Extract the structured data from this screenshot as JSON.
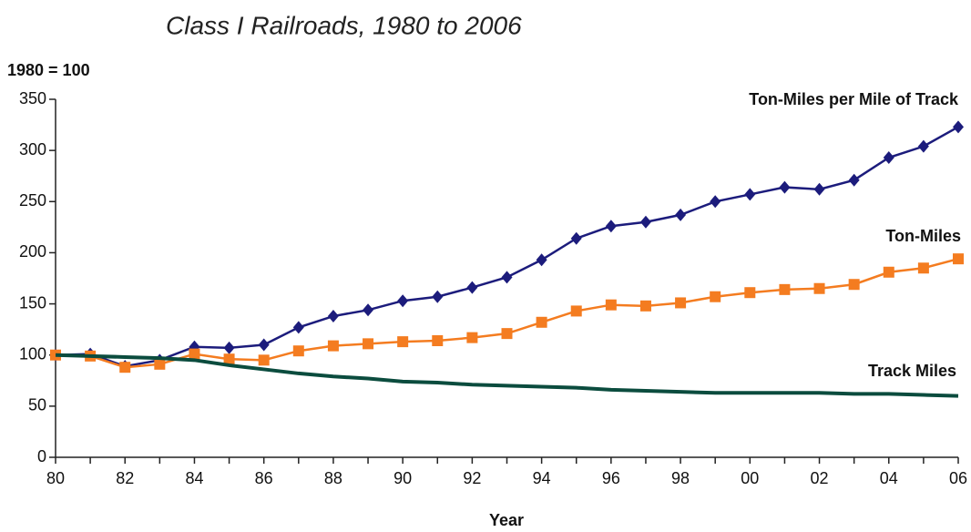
{
  "chart_data": {
    "type": "line",
    "title": "Class I Railroads, 1980 to 2006",
    "y_label": "1980 = 100",
    "x_label": "Year",
    "categories": [
      "80",
      null,
      "82",
      null,
      "84",
      null,
      "86",
      null,
      "88",
      null,
      "90",
      null,
      "92",
      null,
      "94",
      null,
      "96",
      null,
      "98",
      null,
      "00",
      null,
      "02",
      null,
      "04",
      null,
      "06"
    ],
    "ylim": [
      0,
      350
    ],
    "yticks": [
      0,
      50,
      100,
      150,
      200,
      250,
      300,
      350
    ],
    "grid": false,
    "series": [
      {
        "name": "Ton-Miles per Mile of Track",
        "color": "#1c1c7c",
        "marker": "diamond",
        "values": [
          100,
          101,
          89,
          95,
          108,
          107,
          110,
          127,
          138,
          144,
          153,
          157,
          166,
          176,
          193,
          214,
          226,
          230,
          237,
          250,
          257,
          264,
          262,
          271,
          293,
          304,
          323
        ]
      },
      {
        "name": "Ton-Miles",
        "color": "#f47c20",
        "marker": "square",
        "values": [
          100,
          99,
          88,
          91,
          101,
          96,
          95,
          104,
          109,
          111,
          113,
          114,
          117,
          121,
          132,
          143,
          149,
          148,
          151,
          157,
          161,
          164,
          165,
          169,
          181,
          185,
          194
        ]
      },
      {
        "name": "Track Miles",
        "color": "#0b4c3e",
        "marker": "none",
        "values": [
          100,
          99,
          98,
          97,
          95,
          90,
          86,
          82,
          79,
          77,
          74,
          73,
          71,
          70,
          69,
          68,
          66,
          65,
          64,
          63,
          63,
          63,
          63,
          62,
          62,
          61,
          60
        ]
      }
    ]
  }
}
